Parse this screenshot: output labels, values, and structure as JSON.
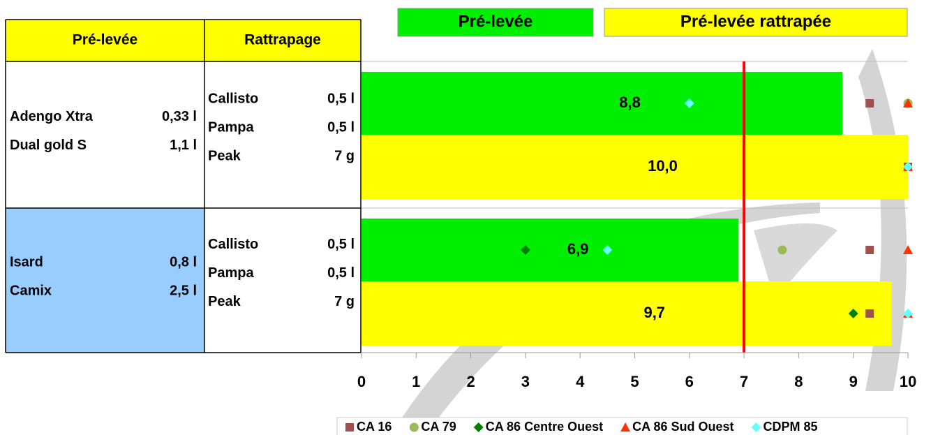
{
  "table": {
    "header": [
      "Pré-levée",
      "Rattrapage"
    ],
    "rows": [
      {
        "pre": [
          [
            "Adengo Xtra",
            "0,33 l"
          ],
          [
            "Dual gold S",
            "1,1 l"
          ]
        ],
        "rattrapage": [
          [
            "Callisto",
            "0,5 l"
          ],
          [
            "Pampa",
            "0,5 l"
          ],
          [
            "Peak",
            "7 g"
          ]
        ]
      },
      {
        "pre": [
          [
            "Isard",
            "0,8 l"
          ],
          [
            "Camix",
            "2,5 l"
          ]
        ],
        "rattrapage": [
          [
            "Callisto",
            "0,5 l"
          ],
          [
            "Pampa",
            "0,5 l"
          ],
          [
            "Peak",
            "7 g"
          ]
        ]
      }
    ]
  },
  "chart_data": {
    "type": "bar",
    "orientation": "horizontal",
    "bar_legend": [
      {
        "name": "Pré-levée",
        "color": "#00ee00"
      },
      {
        "name": "Pré-levée rattrapée",
        "color": "#ffff00"
      }
    ],
    "categories": [
      null,
      null,
      null,
      null
    ],
    "values": [
      8.8,
      10.0,
      6.9,
      9.7
    ],
    "value_labels": [
      "8,8",
      "10,0",
      "6,9",
      "9,7"
    ],
    "reference_line": {
      "value": 7,
      "color": "#ff0000"
    },
    "xlim": [
      0,
      10
    ],
    "xticks": [
      0,
      1,
      2,
      3,
      4,
      5,
      6,
      7,
      8,
      9,
      10
    ],
    "series": [
      {
        "name": "CA 16",
        "color": "#a0504d",
        "marker": "square",
        "values": [
          9.3,
          10,
          9.3,
          9.3
        ]
      },
      {
        "name": "CA 79",
        "color": "#9bbb59",
        "marker": "circle",
        "values": [
          10,
          null,
          7.7,
          null
        ]
      },
      {
        "name": "CA 86 Centre Ouest",
        "color": "#008000",
        "marker": "diamond",
        "values": [
          null,
          null,
          3.0,
          9.0
        ]
      },
      {
        "name": "CA 86 Sud Ouest",
        "color": "#ff3300",
        "marker": "triangle",
        "values": [
          10,
          10,
          10,
          10
        ]
      },
      {
        "name": "CDPM 85",
        "color": "#66ffff",
        "marker": "diamond",
        "values": [
          6.0,
          10,
          4.5,
          10
        ]
      }
    ]
  }
}
